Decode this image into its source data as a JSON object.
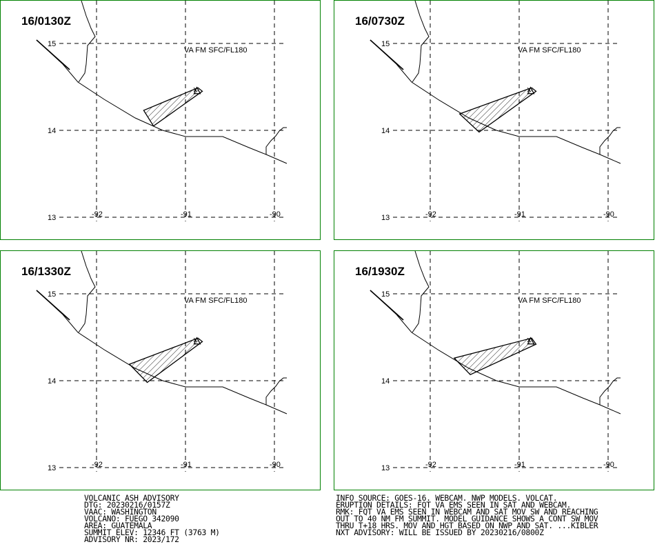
{
  "panels": [
    {
      "time": "16/0130Z",
      "label": "VA FM SFC/FL180",
      "ash_polygon": [
        [
          -90.86,
          14.49
        ],
        [
          -90.81,
          14.45
        ],
        [
          -91.36,
          14.05
        ],
        [
          -91.47,
          14.23
        ]
      ]
    },
    {
      "time": "16/0730Z",
      "label": "VA FM SFC/FL180",
      "ash_polygon": [
        [
          -90.86,
          14.49
        ],
        [
          -90.81,
          14.45
        ],
        [
          -91.45,
          13.98
        ],
        [
          -91.67,
          14.19
        ]
      ]
    },
    {
      "time": "16/1330Z",
      "label": "VA FM SFC/FL180",
      "ash_polygon": [
        [
          -90.86,
          14.49
        ],
        [
          -90.81,
          14.45
        ],
        [
          -91.43,
          13.98
        ],
        [
          -91.63,
          14.19
        ]
      ]
    },
    {
      "time": "16/1930Z",
      "label": "VA FM SFC/FL180",
      "ash_polygon": [
        [
          -90.86,
          14.49
        ],
        [
          -90.81,
          14.42
        ],
        [
          -91.55,
          14.07
        ],
        [
          -91.73,
          14.26
        ]
      ]
    }
  ],
  "grid": {
    "lat_ticks": [
      "15",
      "14",
      "13"
    ],
    "lon_ticks": [
      "-92",
      "-91",
      "-90"
    ]
  },
  "volcano_marker": {
    "symbol": "x",
    "lat": 14.47,
    "lon": -90.88
  },
  "advisory_left": [
    "VOLCANIC ASH ADVISORY",
    "DTG: 20230216/0157Z",
    "VAAC: WASHINGTON",
    "VOLCANO: FUEGO 342090",
    "AREA: GUATEMALA",
    "SUMMIT ELEV: 12346 FT (3763 M)",
    "ADVISORY NR: 2023/172"
  ],
  "advisory_right": [
    "INFO SOURCE: GOES-16. WEBCAM. NWP MODELS. VOLCAT.",
    "ERUPTION DETAILS: FQT VA EMS SEEN IN SAT AND WEBCAM.",
    "RMK: FQT VA EMS SEEN IN WEBCAM AND SAT MOV SW AND REACHING",
    "OUT TO 40 NM FM SUMMIT. MODEL GUIDANCE SHOWS A CONT SW MOV",
    "THRU T+18 HRS. MOV AND HGT BASED ON NWP AND SAT. ...KIBLER",
    "NXT ADVISORY: WILL BE ISSUED BY 20230216/0800Z"
  ],
  "colors": {
    "frame": "#008000",
    "lines": "#000000"
  }
}
